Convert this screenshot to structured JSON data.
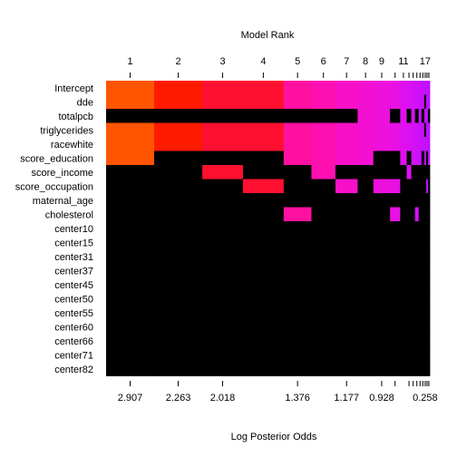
{
  "chart_data": {
    "type": "heatmap",
    "title": "Model Rank",
    "xlabel": "Log Posterior Odds",
    "top_tick_labels": [
      {
        "rank": 1,
        "label": "1"
      },
      {
        "rank": 2,
        "label": "2"
      },
      {
        "rank": 3,
        "label": "3"
      },
      {
        "rank": 4,
        "label": "4"
      },
      {
        "rank": 5,
        "label": "5"
      },
      {
        "rank": 6,
        "label": "6"
      },
      {
        "rank": 7,
        "label": "7"
      },
      {
        "rank": 8,
        "label": "8"
      },
      {
        "rank": 9,
        "label": "9"
      },
      {
        "rank": 11,
        "label": "11"
      },
      {
        "rank": 17,
        "label": "17"
      }
    ],
    "bottom_tick_labels": [
      {
        "rank": 1,
        "label": "2.907"
      },
      {
        "rank": 2,
        "label": "2.263"
      },
      {
        "rank": 3,
        "label": "2.018"
      },
      {
        "rank": 5,
        "label": "1.376"
      },
      {
        "rank": 7,
        "label": "1.177"
      },
      {
        "rank": 9,
        "label": "0.928"
      },
      {
        "rank": 17,
        "label": "0.258"
      }
    ],
    "variables": [
      "Intercept",
      "dde",
      "totalpcb",
      "triglycerides",
      "racewhite",
      "score_education",
      "score_income",
      "score_occupation",
      "maternal_age",
      "cholesterol",
      "center10",
      "center15",
      "center31",
      "center37",
      "center45",
      "center50",
      "center55",
      "center60",
      "center66",
      "center71",
      "center82"
    ],
    "ranks": [
      1,
      2,
      3,
      4,
      5,
      6,
      7,
      8,
      9,
      10,
      11,
      12,
      13,
      14,
      15,
      16,
      17,
      18,
      19
    ],
    "model_colors": [
      "#FF5500",
      "#FF1A00",
      "#FF1030",
      "#FF1030",
      "#FF10A0",
      "#FF10B0",
      "#F810C8",
      "#F410D0",
      "#EE10DC",
      "#E810E4",
      "#E010EE",
      "#DA10F2",
      "#D410F6",
      "#D010F8",
      "#CC10FA",
      "#C810FC",
      "#C410FD",
      "#C010FE",
      "#BC10FF"
    ],
    "excluded_color": "#000000",
    "inclusion": {
      "Intercept": [
        1,
        1,
        1,
        1,
        1,
        1,
        1,
        1,
        1,
        1,
        1,
        1,
        1,
        1,
        1,
        1,
        1,
        1,
        1
      ],
      "dde": [
        1,
        1,
        1,
        1,
        1,
        1,
        1,
        1,
        1,
        1,
        1,
        1,
        1,
        1,
        1,
        1,
        0,
        1,
        1
      ],
      "totalpcb": [
        0,
        0,
        0,
        0,
        0,
        0,
        0,
        1,
        1,
        0,
        1,
        0,
        1,
        0,
        1,
        0,
        1,
        1,
        0
      ],
      "triglycerides": [
        1,
        1,
        1,
        1,
        1,
        1,
        1,
        1,
        1,
        1,
        1,
        1,
        1,
        1,
        1,
        1,
        0,
        1,
        1
      ],
      "racewhite": [
        1,
        1,
        1,
        1,
        1,
        1,
        1,
        1,
        1,
        1,
        1,
        1,
        1,
        1,
        1,
        1,
        1,
        1,
        1
      ],
      "score_education": [
        1,
        0,
        0,
        0,
        1,
        1,
        1,
        1,
        0,
        0,
        1,
        0,
        1,
        1,
        1,
        0,
        1,
        0,
        1
      ],
      "score_income": [
        0,
        0,
        1,
        0,
        0,
        1,
        0,
        0,
        0,
        0,
        0,
        1,
        0,
        0,
        0,
        0,
        0,
        0,
        0
      ],
      "score_occupation": [
        0,
        0,
        0,
        1,
        0,
        0,
        1,
        0,
        1,
        1,
        0,
        0,
        0,
        0,
        0,
        0,
        0,
        1,
        0
      ],
      "maternal_age": [
        0,
        0,
        0,
        0,
        0,
        0,
        0,
        0,
        0,
        0,
        0,
        0,
        0,
        0,
        0,
        0,
        0,
        0,
        0
      ],
      "cholesterol": [
        0,
        0,
        0,
        0,
        1,
        0,
        0,
        0,
        0,
        1,
        0,
        0,
        0,
        1,
        0,
        0,
        0,
        0,
        0
      ],
      "center10": [
        0,
        0,
        0,
        0,
        0,
        0,
        0,
        0,
        0,
        0,
        0,
        0,
        0,
        0,
        0,
        0,
        0,
        0,
        0
      ],
      "center15": [
        0,
        0,
        0,
        0,
        0,
        0,
        0,
        0,
        0,
        0,
        0,
        0,
        0,
        0,
        0,
        0,
        0,
        0,
        0
      ],
      "center31": [
        0,
        0,
        0,
        0,
        0,
        0,
        0,
        0,
        0,
        0,
        0,
        0,
        0,
        0,
        0,
        0,
        0,
        0,
        0
      ],
      "center37": [
        0,
        0,
        0,
        0,
        0,
        0,
        0,
        0,
        0,
        0,
        0,
        0,
        0,
        0,
        0,
        0,
        0,
        0,
        0
      ],
      "center45": [
        0,
        0,
        0,
        0,
        0,
        0,
        0,
        0,
        0,
        0,
        0,
        0,
        0,
        0,
        0,
        0,
        0,
        0,
        0
      ],
      "center50": [
        0,
        0,
        0,
        0,
        0,
        0,
        0,
        0,
        0,
        0,
        0,
        0,
        0,
        0,
        0,
        0,
        0,
        0,
        0
      ],
      "center55": [
        0,
        0,
        0,
        0,
        0,
        0,
        0,
        0,
        0,
        0,
        0,
        0,
        0,
        0,
        0,
        0,
        0,
        0,
        0
      ],
      "center60": [
        0,
        0,
        0,
        0,
        0,
        0,
        0,
        0,
        0,
        0,
        0,
        0,
        0,
        0,
        0,
        0,
        0,
        0,
        0
      ],
      "center66": [
        0,
        0,
        0,
        0,
        0,
        0,
        0,
        0,
        0,
        0,
        0,
        0,
        0,
        0,
        0,
        0,
        0,
        0,
        0
      ],
      "center71": [
        0,
        0,
        0,
        0,
        0,
        0,
        0,
        0,
        0,
        0,
        0,
        0,
        0,
        0,
        0,
        0,
        0,
        0,
        0
      ],
      "center82": [
        0,
        0,
        0,
        0,
        0,
        0,
        0,
        0,
        0,
        0,
        0,
        0,
        0,
        0,
        0,
        0,
        0,
        0,
        0
      ]
    }
  }
}
